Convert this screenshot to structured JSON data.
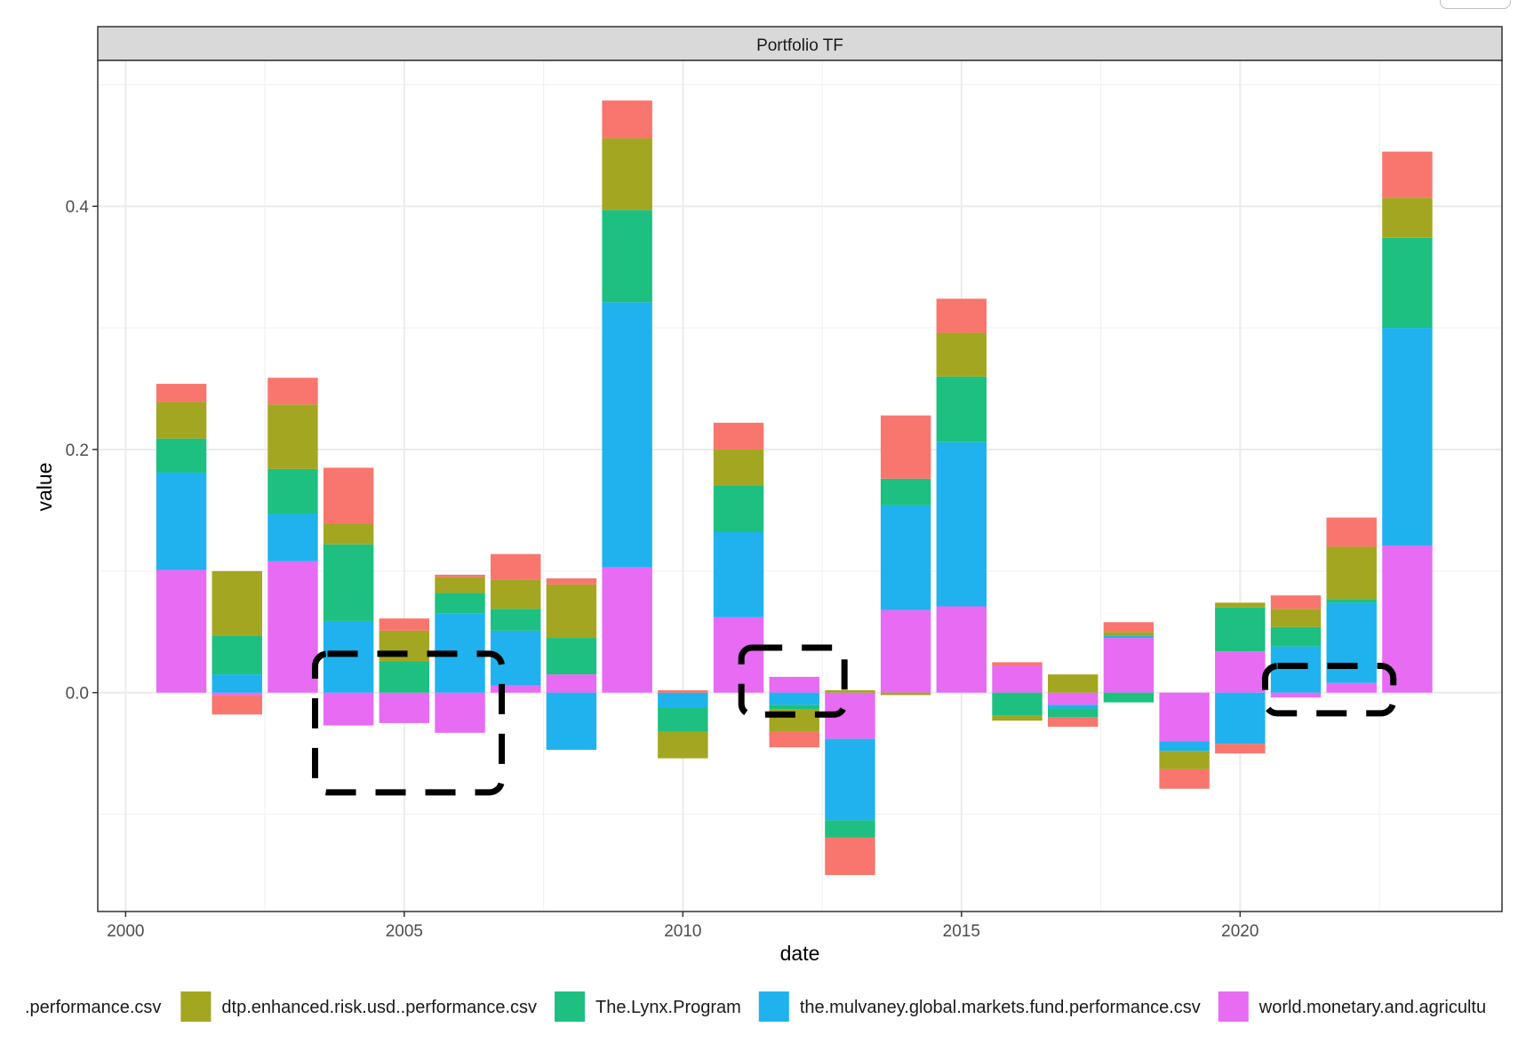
{
  "chart_data": {
    "type": "bar",
    "stacked": true,
    "facet_title": "Portfolio TF",
    "xlabel": "date",
    "ylabel": "value",
    "xlim": [
      1999.5,
      2024.7
    ],
    "ylim": [
      -0.18,
      0.52
    ],
    "x_ticks": [
      2000,
      2005,
      2010,
      2015,
      2020
    ],
    "y_ticks": [
      0.0,
      0.2,
      0.4
    ],
    "y_tick_labels": [
      "0.0",
      "0.2",
      "0.4"
    ],
    "grid": true,
    "legend_position": "bottom",
    "years": [
      2001,
      2002,
      2003,
      2004,
      2005,
      2006,
      2007,
      2008,
      2009,
      2010,
      2011,
      2012,
      2013,
      2014,
      2015,
      2016,
      2017,
      2018,
      2019,
      2020,
      2021,
      2022,
      2023
    ],
    "series": [
      {
        "name": "world.monetary.and.agricultu",
        "color": "#E76BF3",
        "values": [
          0.101,
          -0.002,
          0.108,
          -0.027,
          -0.025,
          -0.033,
          0.006,
          0.015,
          0.103,
          0.0,
          0.062,
          0.013,
          -0.038,
          0.068,
          0.071,
          0.022,
          -0.01,
          0.045,
          -0.04,
          0.034,
          -0.004,
          0.008,
          0.121
        ]
      },
      {
        "name": "the.mulvaney.global.markets.fund.performance.csv",
        "color": "#1FB2EE",
        "values": [
          0.08,
          0.015,
          0.039,
          0.059,
          0.0,
          0.065,
          0.045,
          -0.047,
          0.218,
          -0.012,
          0.07,
          -0.01,
          -0.067,
          0.086,
          0.135,
          0.0,
          -0.003,
          0.002,
          -0.008,
          -0.042,
          0.038,
          0.066,
          0.179
        ]
      },
      {
        "name": "The.Lynx.Program",
        "color": "#1DC080",
        "values": [
          0.028,
          0.032,
          0.037,
          0.063,
          0.026,
          0.017,
          0.018,
          0.03,
          0.076,
          -0.02,
          0.038,
          -0.004,
          -0.014,
          0.022,
          0.054,
          -0.019,
          -0.007,
          -0.008,
          0.0,
          0.036,
          0.016,
          0.003,
          0.074
        ]
      },
      {
        "name": "dtp.enhanced.risk.usd..performance.csv",
        "color": "#A3A620",
        "values": [
          0.03,
          0.053,
          0.053,
          0.017,
          0.025,
          0.013,
          0.024,
          0.044,
          0.059,
          -0.022,
          0.03,
          -0.018,
          0.002,
          -0.002,
          0.036,
          -0.004,
          0.015,
          0.003,
          -0.015,
          0.004,
          0.015,
          0.043,
          0.033
        ]
      },
      {
        "name": ".performance.csv",
        "color": "#F8766D",
        "values": [
          0.015,
          -0.016,
          0.022,
          0.046,
          0.01,
          0.002,
          0.021,
          0.005,
          0.031,
          0.002,
          0.022,
          -0.013,
          -0.031,
          0.052,
          0.028,
          0.003,
          -0.008,
          0.008,
          -0.016,
          -0.008,
          0.011,
          0.024,
          0.038
        ]
      }
    ],
    "annotations": [
      "dashed-outline",
      "dashed-outline",
      "dashed-outline"
    ]
  },
  "legend": {
    "items": [
      {
        "label": ".performance.csv",
        "color": "#F8766D"
      },
      {
        "label": "dtp.enhanced.risk.usd..performance.csv",
        "color": "#A3A620"
      },
      {
        "label": "The.Lynx.Program",
        "color": "#1DC080"
      },
      {
        "label": "the.mulvaney.global.markets.fund.performance.csv",
        "color": "#1FB2EE"
      },
      {
        "label": "world.monetary.and.agricultu",
        "color": "#E76BF3"
      }
    ]
  }
}
